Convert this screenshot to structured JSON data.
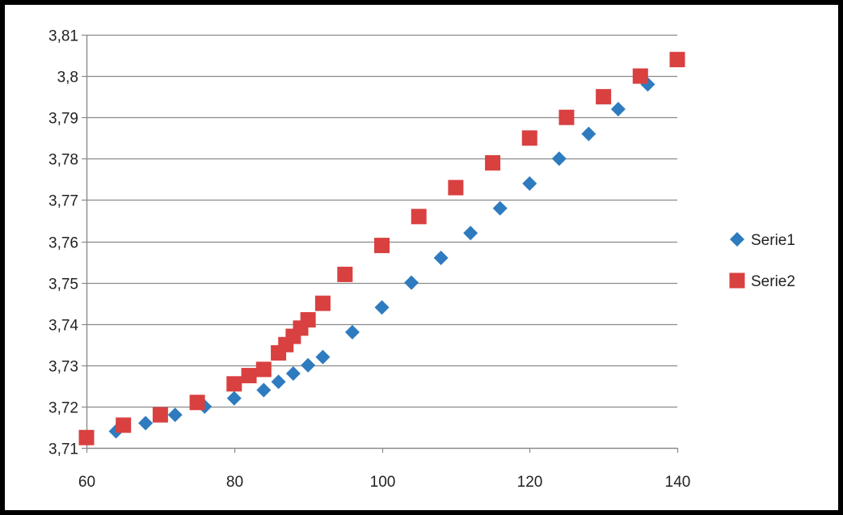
{
  "chart_data": {
    "type": "scatter",
    "title": "",
    "xlabel": "",
    "ylabel": "",
    "xlim": [
      60,
      140
    ],
    "ylim": [
      3.71,
      3.81
    ],
    "x_ticks": [
      60,
      80,
      100,
      120,
      140
    ],
    "x_tick_labels": [
      "60",
      "80",
      "100",
      "120",
      "140"
    ],
    "y_ticks": [
      3.71,
      3.72,
      3.73,
      3.74,
      3.75,
      3.76,
      3.77,
      3.78,
      3.79,
      3.8,
      3.81
    ],
    "y_tick_labels": [
      "3,71",
      "3,72",
      "3,73",
      "3,74",
      "3,75",
      "3,76",
      "3,77",
      "3,78",
      "3,79",
      "3,8",
      "3,81"
    ],
    "grid": "horizontal",
    "legend_position": "right",
    "series": [
      {
        "name": "Serie1",
        "marker": "diamond",
        "color": "#2e7bbf",
        "x": [
          64,
          68,
          72,
          76,
          80,
          84,
          86,
          88,
          90,
          92,
          96,
          100,
          104,
          108,
          112,
          116,
          120,
          124,
          128,
          132,
          136
        ],
        "y": [
          3.714,
          3.716,
          3.718,
          3.72,
          3.722,
          3.724,
          3.726,
          3.728,
          3.73,
          3.732,
          3.738,
          3.744,
          3.75,
          3.756,
          3.762,
          3.768,
          3.774,
          3.78,
          3.786,
          3.792,
          3.798
        ]
      },
      {
        "name": "Serie2",
        "marker": "square",
        "color": "#d94040",
        "x": [
          60,
          65,
          70,
          75,
          80,
          82,
          84,
          86,
          87,
          88,
          89,
          90,
          92,
          95,
          100,
          105,
          110,
          115,
          120,
          125,
          130,
          135,
          140
        ],
        "y": [
          3.7125,
          3.7155,
          3.718,
          3.721,
          3.7255,
          3.7275,
          3.729,
          3.733,
          3.735,
          3.737,
          3.739,
          3.741,
          3.745,
          3.752,
          3.759,
          3.766,
          3.773,
          3.779,
          3.785,
          3.79,
          3.795,
          3.8,
          3.804
        ]
      }
    ]
  }
}
